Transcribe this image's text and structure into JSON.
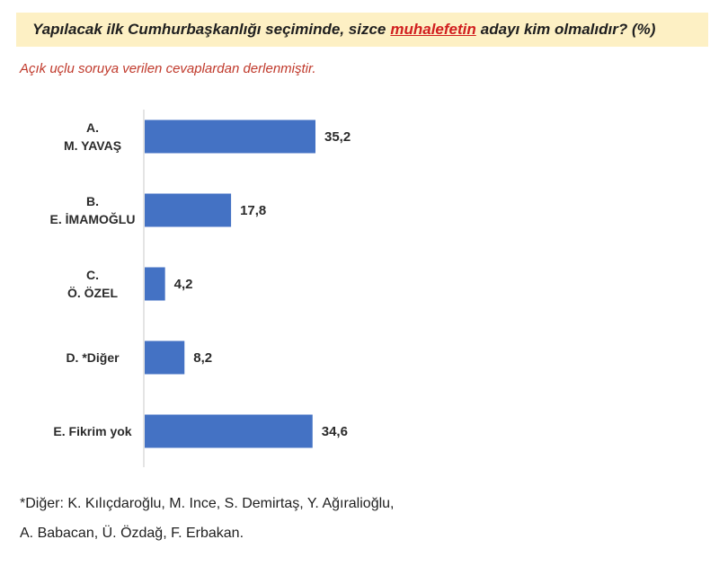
{
  "header": {
    "question_before": "Yapılacak ilk Cumhurbaşkanlığı seçiminde, sizce",
    "question_highlight": "muhalefetin",
    "question_after": "adayı kim olmalıdır? (%)",
    "subtitle": "Açık uçlu soruya verilen cevaplardan derlenmiştir."
  },
  "chart_data": {
    "type": "bar",
    "orientation": "horizontal",
    "categories": [
      [
        "A.",
        "M. YAVAŞ"
      ],
      [
        "B.",
        "E. İMAMOĞLU"
      ],
      [
        "C.",
        "Ö. ÖZEL"
      ],
      [
        "D. *Diğer"
      ],
      [
        "E. Fikrim yok"
      ]
    ],
    "values": [
      35.2,
      17.8,
      4.2,
      8.2,
      34.6
    ],
    "value_labels": [
      "35,2",
      "17,8",
      "4,2",
      "8,2",
      "34,6"
    ],
    "bar_color": "#4472c4",
    "grid": false,
    "legend": "none"
  },
  "footnote": {
    "line1": "*Diğer: K. Kılıçdaroğlu, M. Ince, S. Demirtaş, Y. Ağıralioğlu,",
    "line2": "A. Babacan, Ü. Özdağ, F. Erbakan."
  }
}
